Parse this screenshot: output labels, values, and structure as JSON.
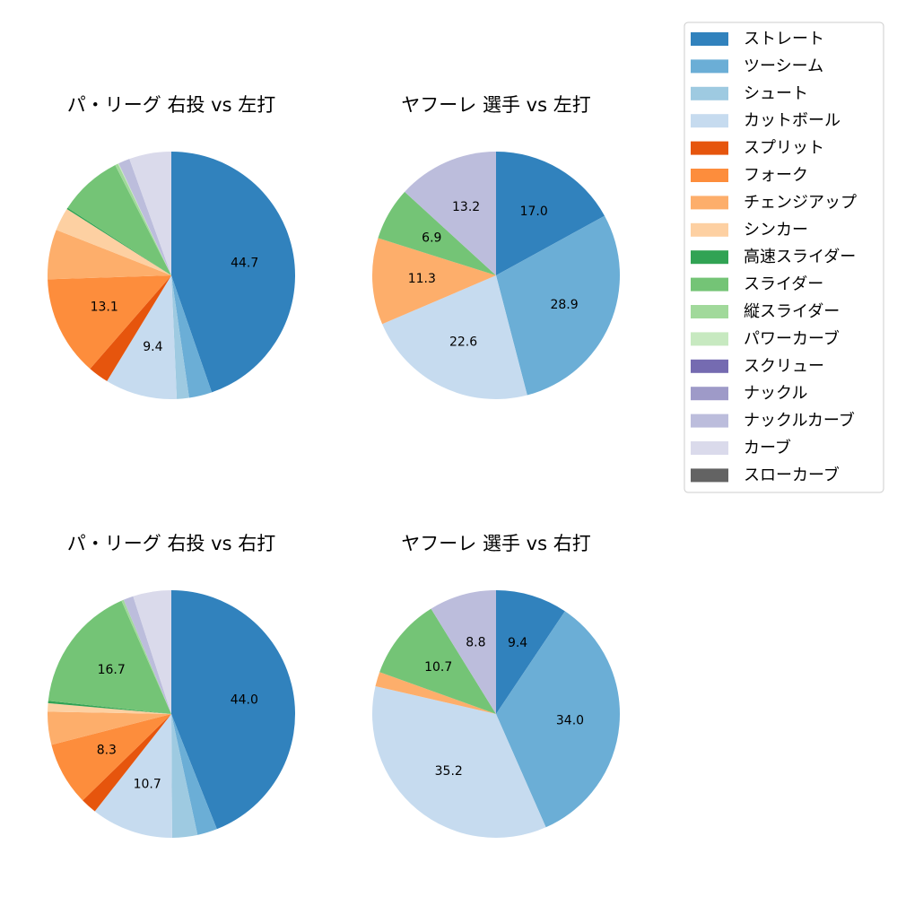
{
  "legend": {
    "position": "upper right",
    "entries": [
      {
        "name": "ストレート",
        "color": "#3182bd"
      },
      {
        "name": "ツーシーム",
        "color": "#6baed6"
      },
      {
        "name": "シュート",
        "color": "#9ecae1"
      },
      {
        "name": "カットボール",
        "color": "#c6dbef"
      },
      {
        "name": "スプリット",
        "color": "#e6550d"
      },
      {
        "name": "フォーク",
        "color": "#fd8d3c"
      },
      {
        "name": "チェンジアップ",
        "color": "#fdae6b"
      },
      {
        "name": "シンカー",
        "color": "#fdd0a2"
      },
      {
        "name": "高速スライダー",
        "color": "#31a354"
      },
      {
        "name": "スライダー",
        "color": "#74c476"
      },
      {
        "name": "縦スライダー",
        "color": "#a1d99b"
      },
      {
        "name": "パワーカーブ",
        "color": "#c7e9c0"
      },
      {
        "name": "スクリュー",
        "color": "#756bb1"
      },
      {
        "name": "ナックル",
        "color": "#9e9ac8"
      },
      {
        "name": "ナックルカーブ",
        "color": "#bcbddc"
      },
      {
        "name": "カーブ",
        "color": "#dadaeb"
      },
      {
        "name": "スローカーブ",
        "color": "#636363"
      }
    ]
  },
  "chart_data": [
    {
      "type": "pie",
      "title": "パ・リーグ 右投 vs 左打",
      "categories": [
        "ストレート",
        "ツーシーム",
        "シュート",
        "カットボール",
        "スプリット",
        "フォーク",
        "チェンジアップ",
        "シンカー",
        "高速スライダー",
        "スライダー",
        "縦スライダー",
        "パワーカーブ",
        "ナックルカーブ",
        "カーブ"
      ],
      "values": [
        44.7,
        3.0,
        1.6,
        9.4,
        2.7,
        13.1,
        6.5,
        3.0,
        0.2,
        8.3,
        0.4,
        0.1,
        1.5,
        5.5
      ],
      "value_labels": [
        "44.7",
        null,
        null,
        "9.4",
        null,
        "13.1",
        null,
        null,
        null,
        null,
        null,
        null,
        null,
        null
      ],
      "colors": [
        "#3182bd",
        "#6baed6",
        "#9ecae1",
        "#c6dbef",
        "#e6550d",
        "#fd8d3c",
        "#fdae6b",
        "#fdd0a2",
        "#31a354",
        "#74c476",
        "#a1d99b",
        "#c7e9c0",
        "#bcbddc",
        "#dadaeb"
      ]
    },
    {
      "type": "pie",
      "title": "ヤフーレ 選手 vs 左打",
      "categories": [
        "ストレート",
        "ツーシーム",
        "カットボール",
        "チェンジアップ",
        "スライダー",
        "ナックルカーブ"
      ],
      "values": [
        17.0,
        28.9,
        22.6,
        11.3,
        6.9,
        13.2
      ],
      "value_labels": [
        "17.0",
        "28.9",
        "22.6",
        "11.3",
        "6.9",
        "13.2"
      ],
      "colors": [
        "#3182bd",
        "#6baed6",
        "#c6dbef",
        "#fdae6b",
        "#74c476",
        "#bcbddc"
      ]
    },
    {
      "type": "pie",
      "title": "パ・リーグ 右投 vs 右打",
      "categories": [
        "ストレート",
        "ツーシーム",
        "シュート",
        "カットボール",
        "スプリット",
        "フォーク",
        "チェンジアップ",
        "シンカー",
        "高速スライダー",
        "スライダー",
        "縦スライダー",
        "ナックルカーブ",
        "カーブ"
      ],
      "values": [
        44.0,
        2.6,
        3.3,
        10.7,
        2.1,
        8.3,
        4.3,
        1.1,
        0.3,
        16.7,
        0.3,
        1.3,
        5.0
      ],
      "value_labels": [
        "44.0",
        null,
        null,
        "10.7",
        null,
        "8.3",
        null,
        null,
        null,
        "16.7",
        null,
        null,
        null
      ],
      "colors": [
        "#3182bd",
        "#6baed6",
        "#9ecae1",
        "#c6dbef",
        "#e6550d",
        "#fd8d3c",
        "#fdae6b",
        "#fdd0a2",
        "#31a354",
        "#74c476",
        "#a1d99b",
        "#bcbddc",
        "#dadaeb"
      ]
    },
    {
      "type": "pie",
      "title": "ヤフーレ 選手 vs 右打",
      "categories": [
        "ストレート",
        "ツーシーム",
        "カットボール",
        "チェンジアップ",
        "スライダー",
        "ナックルカーブ"
      ],
      "values": [
        9.4,
        34.0,
        35.2,
        1.9,
        10.7,
        8.8
      ],
      "value_labels": [
        "9.4",
        "34.0",
        "35.2",
        null,
        "10.7",
        "8.8"
      ],
      "colors": [
        "#3182bd",
        "#6baed6",
        "#c6dbef",
        "#fdae6b",
        "#74c476",
        "#bcbddc"
      ]
    }
  ]
}
